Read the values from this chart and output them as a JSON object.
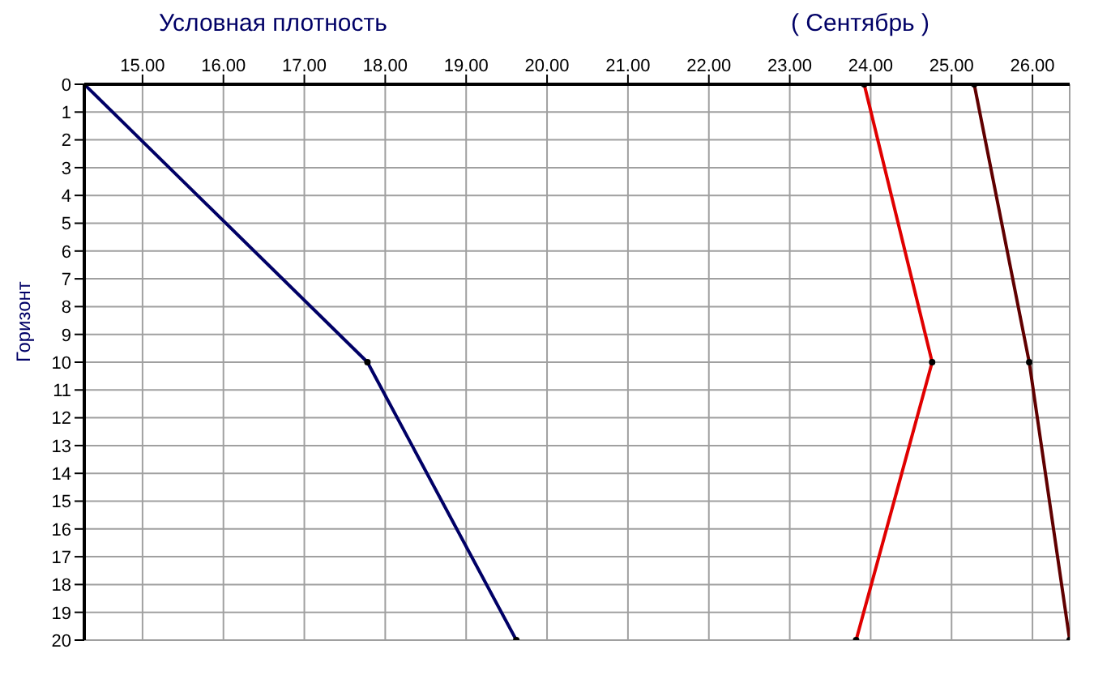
{
  "chart_data": {
    "type": "line",
    "title": "Условная плотность",
    "subtitle": "( Сентябрь )",
    "ylabel": "Горизонт",
    "xlim": [
      14.28,
      26.46
    ],
    "xticks": [
      {
        "value": 15,
        "label": "15.00"
      },
      {
        "value": 16,
        "label": "16.00"
      },
      {
        "value": 17,
        "label": "17.00"
      },
      {
        "value": 18,
        "label": "18.00"
      },
      {
        "value": 19,
        "label": "19.00"
      },
      {
        "value": 20,
        "label": "20.00"
      },
      {
        "value": 21,
        "label": "21.00"
      },
      {
        "value": 22,
        "label": "22.00"
      },
      {
        "value": 23,
        "label": "23.00"
      },
      {
        "value": 24,
        "label": "24.00"
      },
      {
        "value": 25,
        "label": "25.00"
      },
      {
        "value": 26,
        "label": "26.00"
      }
    ],
    "ylim": [
      20,
      0
    ],
    "yticks": [
      0,
      1,
      2,
      3,
      4,
      5,
      6,
      7,
      8,
      9,
      10,
      11,
      12,
      13,
      14,
      15,
      16,
      17,
      18,
      19,
      20
    ],
    "grid": true,
    "legend": false,
    "marker": "circle",
    "line_style": "solid",
    "series": [
      {
        "color": "#000066",
        "x": [
          14.28,
          17.78,
          19.62
        ],
        "values": [
          0,
          10,
          20
        ]
      },
      {
        "color": "#e00000",
        "x": [
          23.92,
          24.76,
          23.82
        ],
        "values": [
          0,
          10,
          20
        ]
      },
      {
        "color": "#600000",
        "x": [
          25.28,
          25.96,
          26.46
        ],
        "values": [
          0,
          10,
          20
        ]
      }
    ]
  }
}
